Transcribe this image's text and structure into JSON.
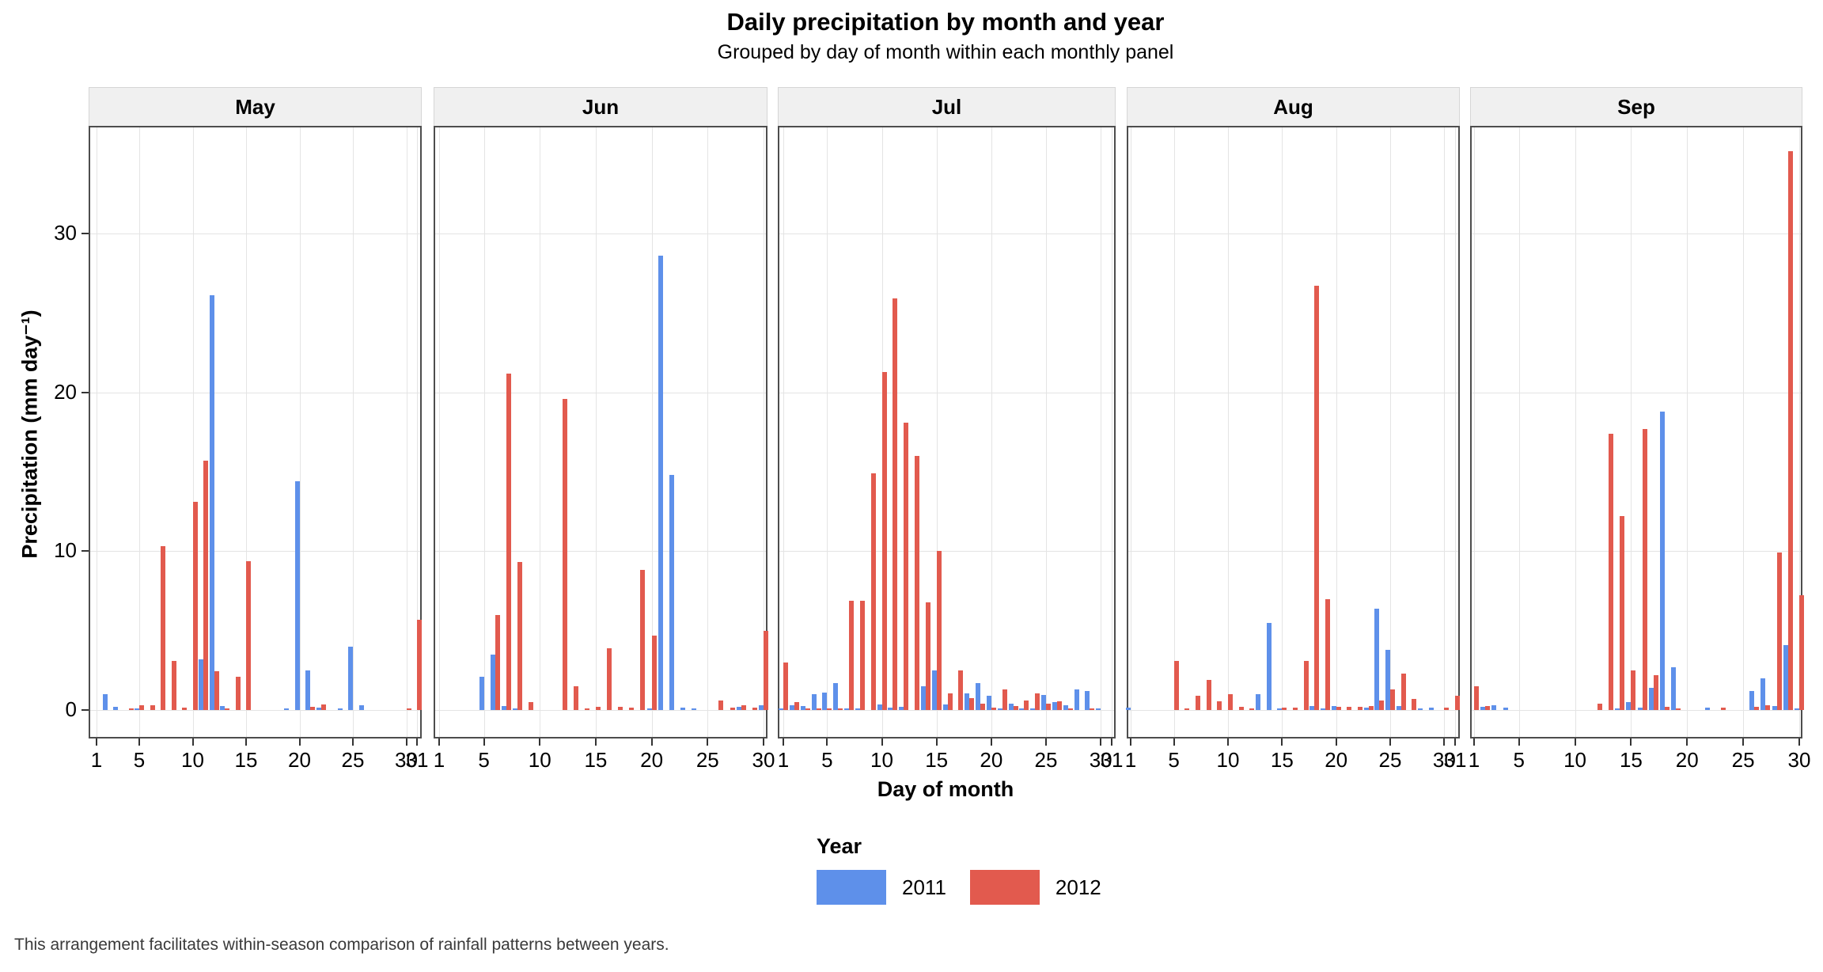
{
  "header": {
    "title": "Daily precipitation by month and year",
    "subtitle": "Grouped by day of month within each monthly panel"
  },
  "footer": {
    "caption": "This arrangement facilitates within-season comparison of rainfall patterns between years."
  },
  "chart_data": {
    "type": "bar",
    "title": "Daily precipitation by month and year",
    "subtitle": "Grouped by day of month within each monthly panel",
    "xlabel": "Day of month",
    "ylabel": "Precipitation (mm day⁻¹)",
    "ylim": [
      0,
      36.8
    ],
    "yticks": [
      0,
      10,
      20,
      30
    ],
    "grid": "major-only, light gray on white",
    "legend_title": "Year",
    "legend_position": "bottom-center",
    "series_names": [
      "2011",
      "2012"
    ],
    "colors": {
      "2011": "#5e90ea",
      "2012": "#e25a4e"
    },
    "panels": [
      {
        "label": "May",
        "n_days": 31,
        "xticks": [
          1,
          5,
          10,
          15,
          20,
          25,
          30,
          31
        ],
        "series": [
          {
            "name": "2011",
            "values": [
              0,
              1.0,
              0.2,
              0,
              0.1,
              0,
              0,
              0,
              0,
              0,
              3.2,
              26.1,
              0.25,
              0,
              0,
              0,
              0,
              0,
              0.1,
              14.4,
              2.5,
              0.15,
              0,
              0.1,
              4.0,
              0.3,
              0,
              0,
              0,
              0,
              0
            ]
          },
          {
            "name": "2012",
            "values": [
              0,
              0,
              0,
              0.1,
              0.3,
              0.3,
              10.3,
              3.1,
              0.15,
              13.1,
              15.7,
              2.45,
              0.1,
              2.1,
              9.35,
              0,
              0,
              0,
              0,
              0,
              0.2,
              0.35,
              0,
              0,
              0,
              0,
              0,
              0,
              0,
              0.1,
              5.7
            ]
          }
        ]
      },
      {
        "label": "Jun",
        "n_days": 30,
        "xticks": [
          1,
          5,
          10,
          15,
          20,
          25,
          30
        ],
        "series": [
          {
            "name": "2011",
            "values": [
              0,
              0,
              0,
              0,
              2.1,
              3.5,
              0.25,
              0.1,
              0,
              0,
              0,
              0,
              0,
              0,
              0,
              0,
              0,
              0,
              0,
              0.1,
              28.6,
              14.8,
              0.15,
              0.1,
              0,
              0,
              0,
              0.2,
              0,
              0.3
            ]
          },
          {
            "name": "2012",
            "values": [
              0,
              0,
              0,
              0,
              0,
              6.0,
              21.2,
              9.3,
              0.5,
              0,
              0,
              19.6,
              1.5,
              0.1,
              0.2,
              3.9,
              0.2,
              0.15,
              8.8,
              4.7,
              0,
              0,
              0,
              0,
              0,
              0.6,
              0.15,
              0.3,
              0.15,
              5.0
            ]
          }
        ]
      },
      {
        "label": "Jul",
        "n_days": 31,
        "xticks": [
          1,
          5,
          10,
          15,
          20,
          25,
          30,
          31
        ],
        "series": [
          {
            "name": "2011",
            "values": [
              0.1,
              0.3,
              0.25,
              1.0,
              1.1,
              1.7,
              0.1,
              0.1,
              0,
              0.35,
              0.15,
              0.2,
              0,
              1.5,
              2.5,
              0.35,
              0,
              1.05,
              1.7,
              0.9,
              0.1,
              0.4,
              0.1,
              0.1,
              0.95,
              0.5,
              0.3,
              1.3,
              1.2,
              0.1,
              0
            ]
          },
          {
            "name": "2012",
            "values": [
              3.0,
              0.5,
              0.1,
              0.1,
              0.1,
              0.1,
              6.9,
              6.9,
              14.9,
              21.3,
              25.9,
              18.1,
              16.0,
              6.8,
              10.0,
              1.05,
              2.5,
              0.75,
              0.4,
              0.15,
              1.3,
              0.25,
              0.6,
              1.05,
              0.4,
              0.55,
              0.1,
              0,
              0.1,
              0,
              0
            ]
          }
        ]
      },
      {
        "label": "Aug",
        "n_days": 31,
        "xticks": [
          1,
          5,
          10,
          15,
          20,
          25,
          30,
          31
        ],
        "series": [
          {
            "name": "2011",
            "values": [
              0.15,
              0,
              0,
              0,
              0,
              0,
              0,
              0,
              0,
              0,
              0,
              0,
              1.0,
              5.5,
              0.1,
              0,
              0,
              0.25,
              0.1,
              0.25,
              0,
              0,
              0.15,
              6.4,
              3.8,
              0.25,
              0,
              0.1,
              0.15,
              0,
              0
            ]
          },
          {
            "name": "2012",
            "values": [
              0,
              0,
              0,
              0,
              3.1,
              0.1,
              0.9,
              1.9,
              0.55,
              1.0,
              0.2,
              0.1,
              0,
              0,
              0.15,
              0.15,
              3.1,
              26.7,
              7.0,
              0.2,
              0.2,
              0.2,
              0.25,
              0.6,
              1.3,
              2.3,
              0.7,
              0,
              0,
              0.15,
              0.9
            ]
          }
        ]
      },
      {
        "label": "Sep",
        "n_days": 30,
        "xticks": [
          1,
          5,
          10,
          15,
          20,
          25,
          30
        ],
        "series": [
          {
            "name": "2011",
            "values": [
              0,
              0.2,
              0.3,
              0.15,
              0,
              0,
              0,
              0,
              0,
              0,
              0,
              0,
              0,
              0.1,
              0.5,
              0.15,
              1.4,
              18.8,
              2.7,
              0,
              0,
              0.15,
              0,
              0,
              0,
              1.2,
              2.0,
              0.25,
              4.1,
              0.1
            ]
          },
          {
            "name": "2012",
            "values": [
              1.5,
              0.25,
              0,
              0,
              0,
              0,
              0,
              0,
              0,
              0,
              0,
              0.4,
              17.4,
              12.2,
              2.5,
              17.7,
              2.2,
              0.2,
              0.1,
              0,
              0,
              0,
              0.15,
              0,
              0,
              0.2,
              0.3,
              9.9,
              35.2,
              7.2
            ]
          }
        ]
      }
    ]
  }
}
